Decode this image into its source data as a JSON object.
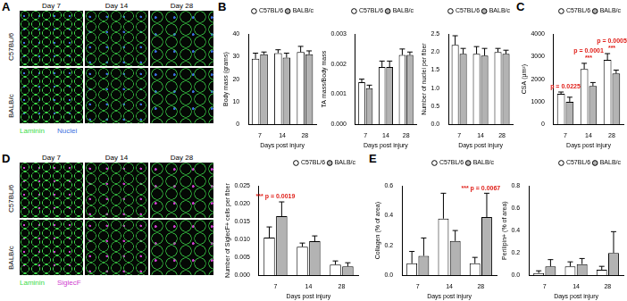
{
  "panel_letters": [
    "A",
    "B",
    "C",
    "D",
    "E"
  ],
  "image_panels": [
    {
      "columns": [
        "Day 7",
        "Day 14",
        "Day 28"
      ],
      "rows": [
        "C57BL/6",
        "BALB/c"
      ],
      "stains": [
        {
          "name": "Laminin",
          "color": "#3ddc4a"
        },
        {
          "name": "Nuclei",
          "color": "#3b6fe0"
        }
      ]
    },
    {
      "columns": [
        "Day 7",
        "Day 14",
        "Day 28"
      ],
      "rows": [
        "C57BL/6",
        "BALB/c"
      ],
      "stains": [
        {
          "name": "Laminin",
          "color": "#3ddc4a"
        },
        {
          "name": "SiglecF",
          "color": "#d040d0"
        }
      ]
    }
  ],
  "chart_data": [
    {
      "type": "bar",
      "y_label": "Body mass (grams)",
      "x_label": "Days post injury",
      "categories": [
        "7",
        "14",
        "28"
      ],
      "series": [
        {
          "name": "C57BL/6",
          "color": "#ffffff",
          "values": [
            29,
            31.5,
            32
          ],
          "errors": [
            2.5,
            1.5,
            2.5
          ]
        },
        {
          "name": "BALB/c",
          "color": "#b3b3b3",
          "values": [
            31,
            29.5,
            31
          ],
          "errors": [
            1,
            2,
            1.5
          ]
        }
      ],
      "ylim": [
        0,
        40
      ],
      "yticks": [
        0,
        10,
        20,
        30,
        40
      ],
      "grid": false,
      "legend": "top",
      "annotations": []
    },
    {
      "type": "bar",
      "y_label": "TA mass/Body mass",
      "x_label": "Days post injury",
      "categories": [
        "7",
        "14",
        "28"
      ],
      "series": [
        {
          "name": "C57BL/6",
          "color": "#ffffff",
          "values": [
            0.0014,
            0.0019,
            0.0023
          ],
          "errors": [
            0.0001,
            0.0002,
            0.0002
          ]
        },
        {
          "name": "BALB/c",
          "color": "#b3b3b3",
          "values": [
            0.0012,
            0.0019,
            0.0023
          ],
          "errors": [
            0.0001,
            0.0002,
            0.0001
          ]
        }
      ],
      "ylim": [
        0,
        0.003
      ],
      "yticks": [
        {
          "value": 0,
          "label": "0.000"
        },
        0.001,
        0.002,
        0.003
      ],
      "grid": false,
      "legend": "top",
      "annotations": []
    },
    {
      "type": "bar",
      "y_label": "Number of nuclei per fiber",
      "x_label": "Days post injury",
      "categories": [
        "7",
        "14",
        "28"
      ],
      "series": [
        {
          "name": "C57BL/6",
          "color": "#ffffff",
          "values": [
            2.2,
            1.95,
            2.0
          ],
          "errors": [
            0.25,
            0.2,
            0.1
          ]
        },
        {
          "name": "BALB/c",
          "color": "#b3b3b3",
          "values": [
            1.95,
            1.9,
            1.95
          ],
          "errors": [
            0.15,
            0.2,
            0.1
          ]
        }
      ],
      "ylim": [
        0,
        2.5
      ],
      "yticks": [
        {
          "value": 0,
          "label": "0.0"
        },
        0.5,
        {
          "value": 1,
          "label": "1.0"
        },
        1.5,
        {
          "value": 2,
          "label": "2.0"
        },
        2.5
      ],
      "grid": false,
      "legend": "top",
      "annotations": []
    },
    {
      "type": "bar",
      "y_label": "CSA (µm²)",
      "x_label": "Days post injury",
      "categories": [
        "7",
        "14",
        "28"
      ],
      "series": [
        {
          "name": "C57BL/6",
          "color": "#ffffff",
          "values": [
            1350,
            2450,
            2850
          ],
          "errors": [
            80,
            250,
            280
          ]
        },
        {
          "name": "BALB/c",
          "color": "#b3b3b3",
          "values": [
            1000,
            1700,
            2250
          ],
          "errors": [
            200,
            150,
            150
          ]
        }
      ],
      "ylim": [
        0,
        4000
      ],
      "yticks": [
        0,
        1000,
        2000,
        3000,
        4000
      ],
      "grid": false,
      "legend": "top",
      "annotations": [
        {
          "category": "7",
          "texts": [
            "p = 0.0225"
          ],
          "color": "#e0201a"
        },
        {
          "category": "14",
          "texts": [
            "p = 0.0001",
            "***"
          ],
          "color": "#e0201a"
        },
        {
          "category": "28",
          "texts": [
            "p = 0.0005",
            "***"
          ],
          "color": "#e0201a"
        }
      ]
    },
    {
      "type": "bar",
      "y_label": "Number of SiglecF+ cells per fiber",
      "x_label": "Days post injury",
      "categories": [
        "7",
        "14",
        "28"
      ],
      "series": [
        {
          "name": "C57BL/6",
          "color": "#ffffff",
          "values": [
            0.0105,
            0.008,
            0.003
          ],
          "errors": [
            0.003,
            0.001,
            0.001
          ]
        },
        {
          "name": "BALB/c",
          "color": "#b3b3b3",
          "values": [
            0.0165,
            0.0095,
            0.0025
          ],
          "errors": [
            0.004,
            0.0015,
            0.001
          ]
        }
      ],
      "ylim": [
        0,
        0.025
      ],
      "yticks": [
        {
          "value": 0,
          "label": "0.000"
        },
        0.005,
        {
          "value": 0.01,
          "label": "0.010"
        },
        0.015,
        {
          "value": 0.02,
          "label": "0.020"
        },
        0.025
      ],
      "grid": false,
      "legend": "top",
      "annotations": [
        {
          "category": "7",
          "texts": [
            "*** p = 0.0019"
          ],
          "color": "#e0201a"
        }
      ]
    },
    {
      "type": "bar",
      "y_label": "Collagen (% of area)",
      "x_label": "Days post injury",
      "categories": [
        "7",
        "14",
        "28"
      ],
      "series": [
        {
          "name": "C57BL/6",
          "color": "#ffffff",
          "values": [
            0.08,
            0.38,
            0.08
          ],
          "errors": [
            0.08,
            0.17,
            0.04
          ]
        },
        {
          "name": "BALB/c",
          "color": "#b3b3b3",
          "values": [
            0.13,
            0.23,
            0.39
          ],
          "errors": [
            0.12,
            0.07,
            0.16
          ]
        }
      ],
      "ylim": [
        0,
        0.6
      ],
      "yticks": [
        {
          "value": 0,
          "label": "0.0"
        },
        0.2,
        0.4,
        0.6
      ],
      "grid": false,
      "legend": "top",
      "annotations": [
        {
          "category": "28",
          "texts": [
            "*** p = 0.0067"
          ],
          "color": "#e0201a"
        }
      ]
    },
    {
      "type": "bar",
      "y_label": "Perilipin+ (% of area)",
      "x_label": "Days post injury",
      "categories": [
        "7",
        "14",
        "28"
      ],
      "series": [
        {
          "name": "C57BL/6",
          "color": "#ffffff",
          "values": [
            0.02,
            0.08,
            0.05
          ],
          "errors": [
            0.02,
            0.04,
            0.03
          ]
        },
        {
          "name": "BALB/c",
          "color": "#b3b3b3",
          "values": [
            0.08,
            0.1,
            0.2
          ],
          "errors": [
            0.06,
            0.05,
            0.19
          ]
        }
      ],
      "ylim": [
        0,
        0.8
      ],
      "yticks": [
        {
          "value": 0,
          "label": "0.0"
        },
        0.2,
        0.4,
        0.6,
        0.8
      ],
      "grid": false,
      "legend": "top",
      "annotations": []
    }
  ]
}
